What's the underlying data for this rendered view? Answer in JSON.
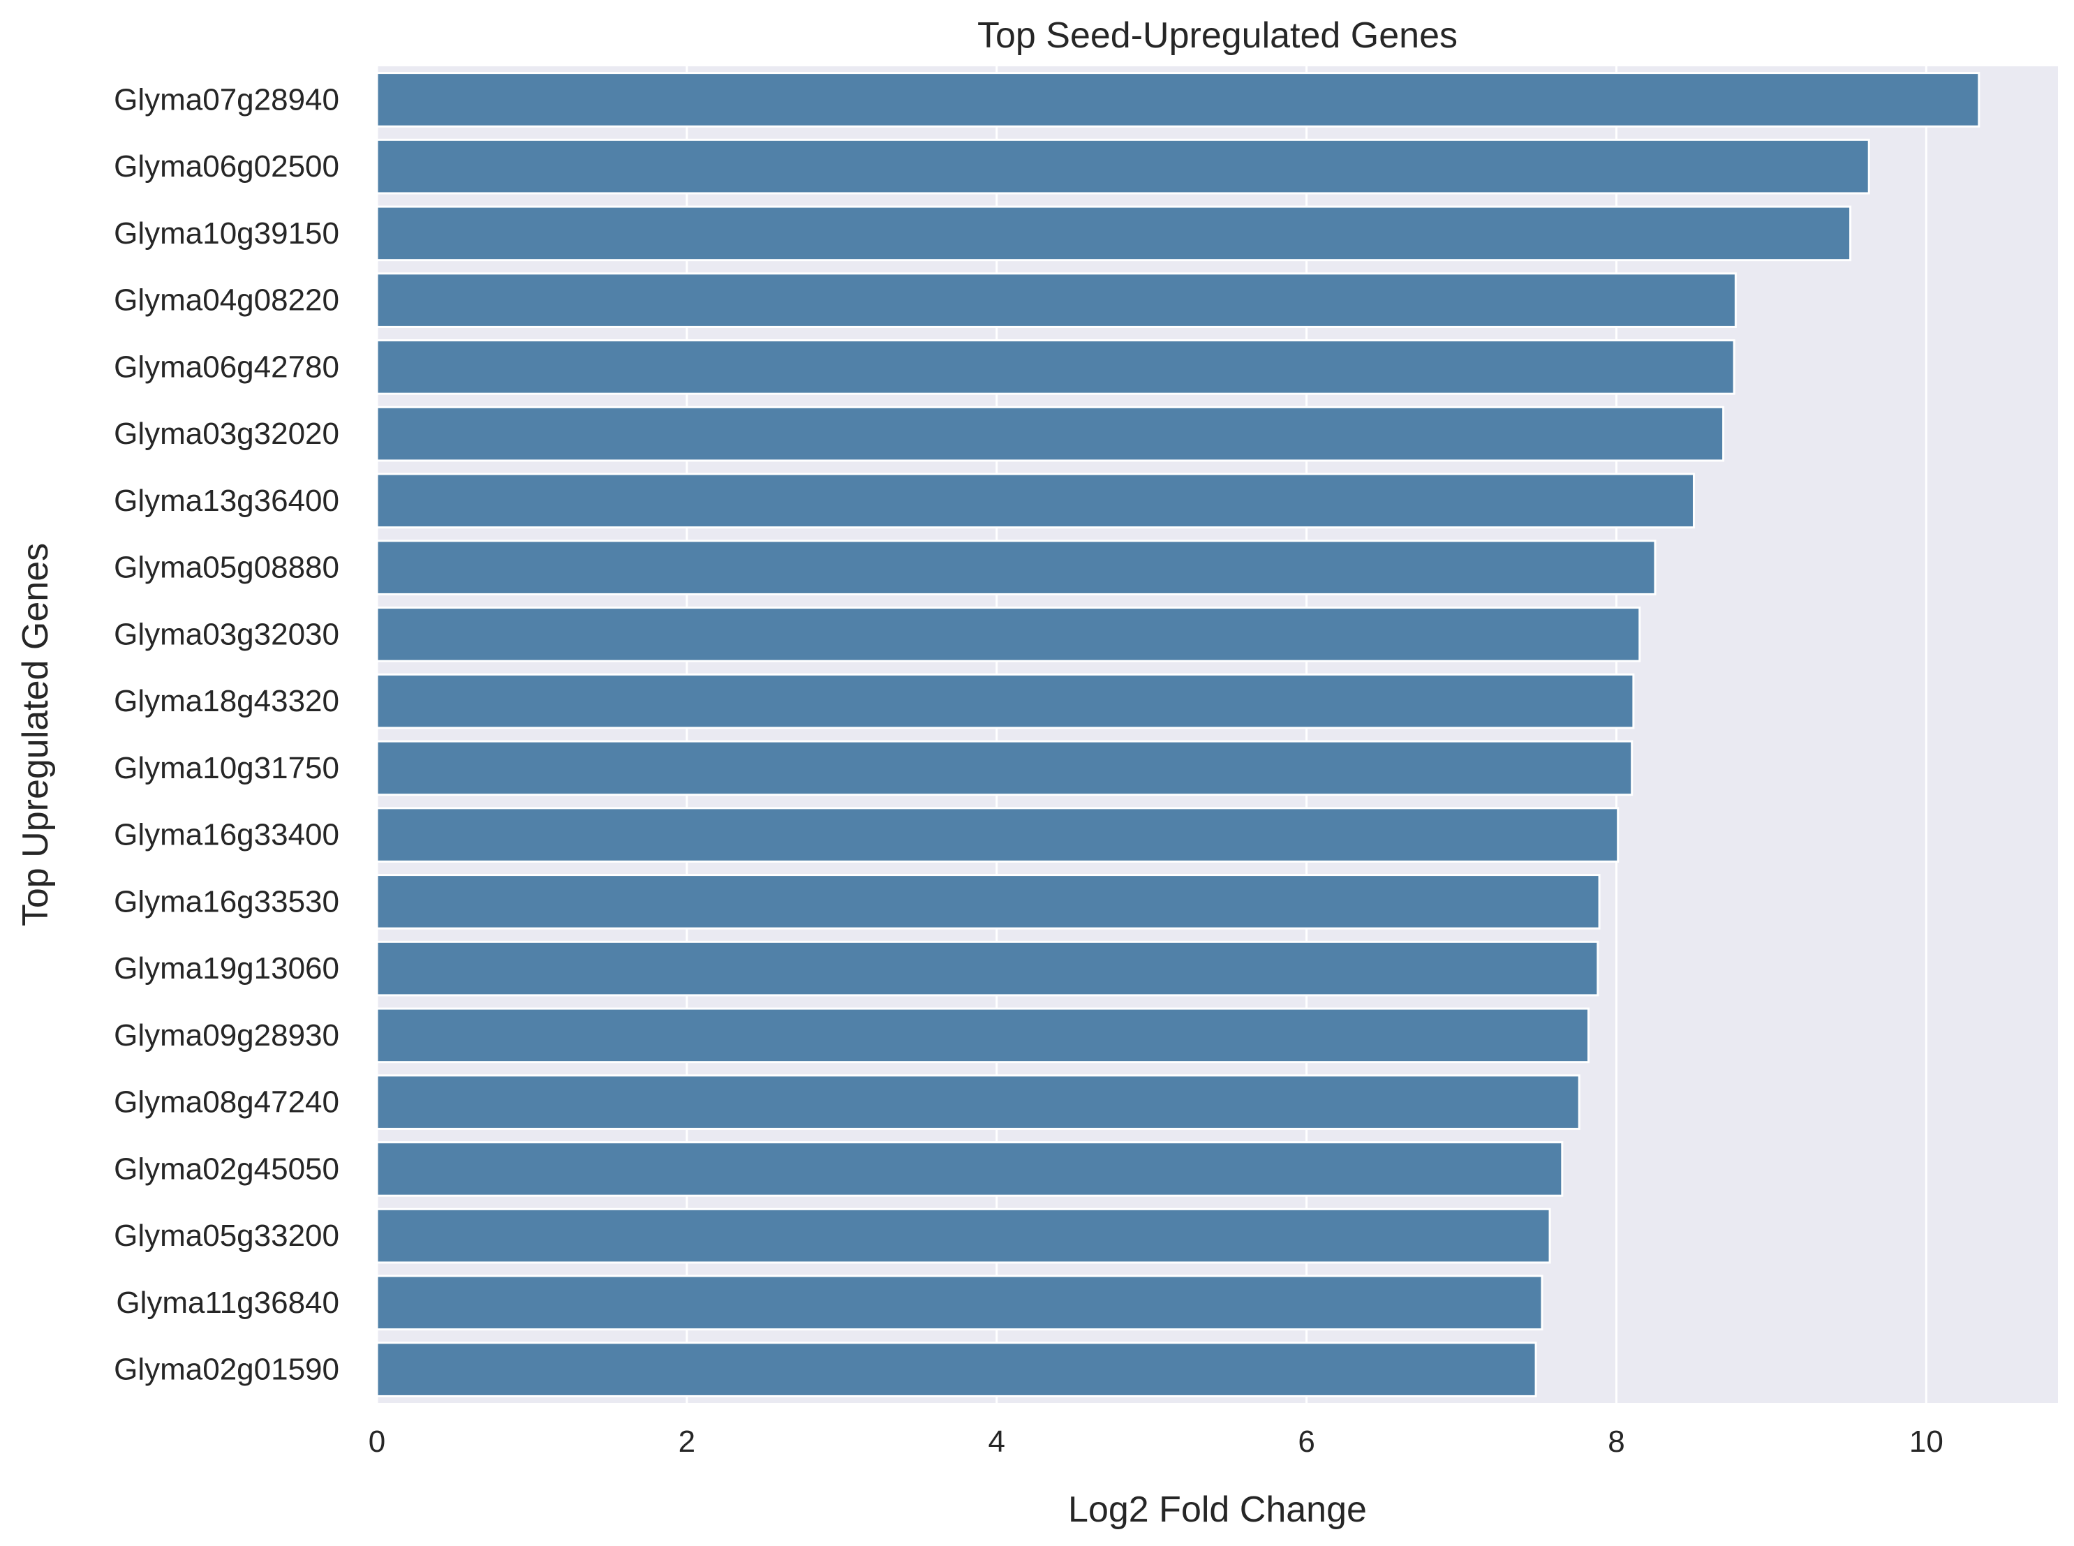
{
  "chart_data": {
    "type": "bar",
    "orientation": "horizontal",
    "title": "Top Seed-Upregulated Genes",
    "xlabel": "Log2 Fold Change",
    "ylabel": "Top Upregulated Genes",
    "xlim": [
      0,
      10.85
    ],
    "xticks": [
      0,
      2,
      4,
      6,
      8,
      10
    ],
    "grid": true,
    "categories": [
      "Glyma07g28940",
      "Glyma06g02500",
      "Glyma10g39150",
      "Glyma04g08220",
      "Glyma06g42780",
      "Glyma03g32020",
      "Glyma13g36400",
      "Glyma05g08880",
      "Glyma03g32030",
      "Glyma18g43320",
      "Glyma10g31750",
      "Glyma16g33400",
      "Glyma16g33530",
      "Glyma19g13060",
      "Glyma09g28930",
      "Glyma08g47240",
      "Glyma02g45050",
      "Glyma05g33200",
      "Glyma11g36840",
      "Glyma02g01590"
    ],
    "values": [
      10.34,
      9.63,
      9.51,
      8.77,
      8.76,
      8.69,
      8.5,
      8.25,
      8.15,
      8.11,
      8.1,
      8.01,
      7.89,
      7.88,
      7.82,
      7.76,
      7.65,
      7.57,
      7.52,
      7.48
    ],
    "colors": {
      "bar": "#5181a8",
      "plot_background": "#eaeaf2",
      "grid": "#ffffff",
      "text": "#262626"
    }
  }
}
